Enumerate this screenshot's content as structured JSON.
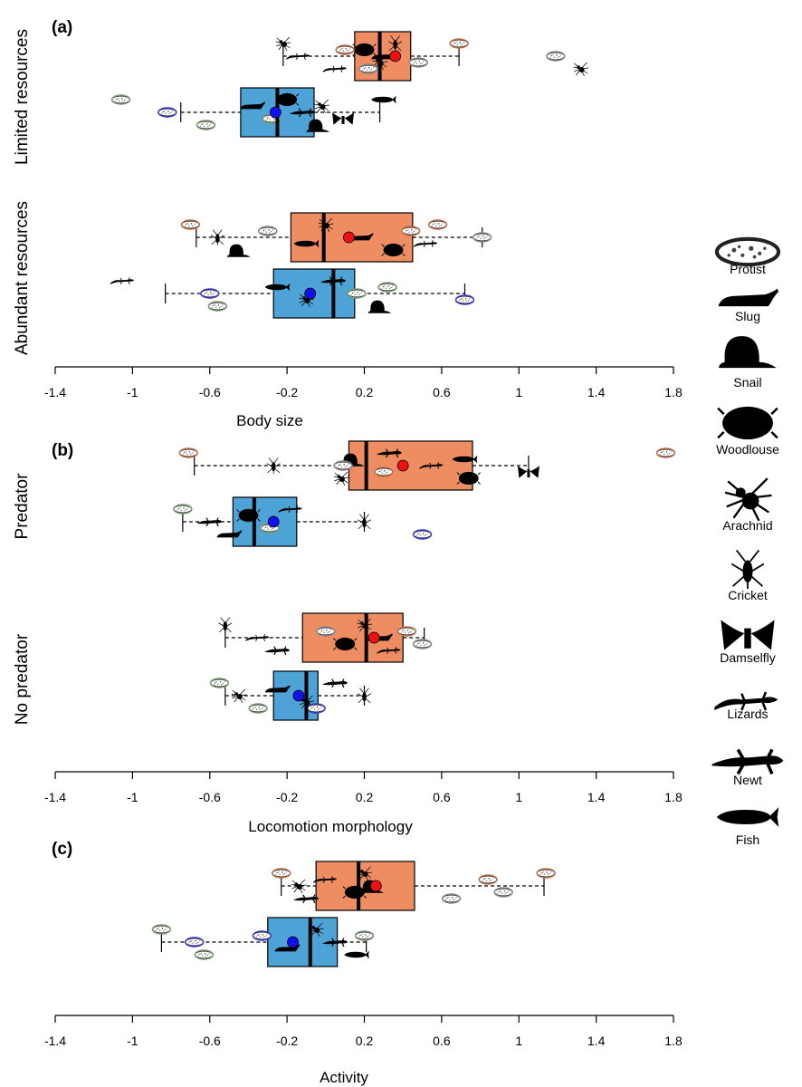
{
  "figure": {
    "colors": {
      "treatment": "#ee8c62",
      "control": "#4ea3d6",
      "treatment_mean": "#ee1111",
      "control_mean": "#1111ee",
      "box_stroke": "#000000",
      "median": "#000000"
    },
    "axis_ticks": [
      "-1.4",
      "-1",
      "-0.6",
      "-0.2",
      "0.2",
      "0.6",
      "1",
      "1.4",
      "1.8"
    ]
  },
  "legend": {
    "items": [
      {
        "label": "Protist",
        "icon": "protist-icon"
      },
      {
        "label": "Slug",
        "icon": "slug-icon"
      },
      {
        "label": "Snail",
        "icon": "snail-icon"
      },
      {
        "label": "Woodlouse",
        "icon": "woodlouse-icon"
      },
      {
        "label": "Arachnid",
        "icon": "arachnid-icon"
      },
      {
        "label": "Cricket",
        "icon": "cricket-icon"
      },
      {
        "label": "Damselfly",
        "icon": "damselfly-icon"
      },
      {
        "label": "Lizards",
        "icon": "lizard-icon"
      },
      {
        "label": "Newt",
        "icon": "newt-icon"
      },
      {
        "label": "Fish",
        "icon": "fish-icon"
      }
    ]
  },
  "chart_data": [
    {
      "type": "box",
      "panel": "(a)",
      "xlabel": "Body size",
      "xlim": [
        -1.4,
        1.8
      ],
      "groups": [
        {
          "label": "Limited resources",
          "boxes": [
            {
              "series": "treatment",
              "whisker_low": -0.22,
              "q1": 0.15,
              "median": 0.28,
              "q3": 0.44,
              "whisker_high": 0.69,
              "mean": 0.36,
              "points": [
                {
                  "x": -0.22,
                  "t": "arachnid"
                },
                {
                  "x": -0.14,
                  "t": "lizard"
                },
                {
                  "x": 0.05,
                  "t": "lizard"
                },
                {
                  "x": 0.2,
                  "t": "woodlouse"
                },
                {
                  "x": 0.28,
                  "t": "arachnid"
                },
                {
                  "x": 0.36,
                  "t": "cricket"
                },
                {
                  "x": 0.3,
                  "t": "slug"
                },
                {
                  "x": 0.22,
                  "t": "protist"
                },
                {
                  "x": 0.1,
                  "t": "protist"
                },
                {
                  "x": 0.48,
                  "t": "protist"
                },
                {
                  "x": 0.69,
                  "t": "protist"
                },
                {
                  "x": 1.19,
                  "t": "protist"
                },
                {
                  "x": 1.32,
                  "t": "arachnid"
                }
              ]
            },
            {
              "series": "control",
              "whisker_low": -0.75,
              "q1": -0.44,
              "median": -0.25,
              "q3": -0.06,
              "whisker_high": 0.28,
              "mean": -0.26,
              "points": [
                {
                  "x": -1.06,
                  "t": "protist"
                },
                {
                  "x": -0.82,
                  "t": "protist"
                },
                {
                  "x": -0.62,
                  "t": "protist"
                },
                {
                  "x": -0.38,
                  "t": "slug"
                },
                {
                  "x": -0.28,
                  "t": "protist"
                },
                {
                  "x": -0.2,
                  "t": "woodlouse"
                },
                {
                  "x": -0.12,
                  "t": "newt"
                },
                {
                  "x": -0.04,
                  "t": "snail"
                },
                {
                  "x": -0.02,
                  "t": "arachnid"
                },
                {
                  "x": 0.09,
                  "t": "damselfly"
                },
                {
                  "x": 0.3,
                  "t": "fish"
                }
              ]
            }
          ]
        },
        {
          "label": "Abundant resources",
          "boxes": [
            {
              "series": "treatment",
              "whisker_low": -0.67,
              "q1": -0.18,
              "median": -0.01,
              "q3": 0.45,
              "whisker_high": 0.81,
              "mean": 0.12,
              "points": [
                {
                  "x": -0.7,
                  "t": "protist"
                },
                {
                  "x": -0.56,
                  "t": "cricket"
                },
                {
                  "x": -0.45,
                  "t": "snail"
                },
                {
                  "x": -0.3,
                  "t": "protist"
                },
                {
                  "x": -0.1,
                  "t": "fish"
                },
                {
                  "x": 0.0,
                  "t": "arachnid"
                },
                {
                  "x": 0.18,
                  "t": "slug"
                },
                {
                  "x": 0.35,
                  "t": "woodlouse"
                },
                {
                  "x": 0.44,
                  "t": "protist"
                },
                {
                  "x": 0.52,
                  "t": "lizard"
                },
                {
                  "x": 0.58,
                  "t": "protist"
                },
                {
                  "x": 0.81,
                  "t": "protist"
                }
              ]
            },
            {
              "series": "control",
              "whisker_low": -0.83,
              "q1": -0.27,
              "median": 0.04,
              "q3": 0.15,
              "whisker_high": 0.72,
              "mean": -0.08,
              "points": [
                {
                  "x": -1.05,
                  "t": "lizard"
                },
                {
                  "x": -0.6,
                  "t": "protist"
                },
                {
                  "x": -0.56,
                  "t": "protist"
                },
                {
                  "x": -0.25,
                  "t": "fish"
                },
                {
                  "x": -0.1,
                  "t": "arachnid"
                },
                {
                  "x": 0.04,
                  "t": "newt"
                },
                {
                  "x": 0.16,
                  "t": "protist"
                },
                {
                  "x": 0.28,
                  "t": "snail"
                },
                {
                  "x": 0.32,
                  "t": "protist"
                },
                {
                  "x": 0.72,
                  "t": "protist"
                }
              ]
            }
          ]
        }
      ]
    },
    {
      "type": "box",
      "panel": "(b)",
      "xlabel": "Locomotion morphology",
      "xlim": [
        -1.4,
        1.8
      ],
      "groups": [
        {
          "label": "Predator",
          "boxes": [
            {
              "series": "treatment",
              "whisker_low": -0.68,
              "q1": 0.12,
              "median": 0.21,
              "q3": 0.76,
              "whisker_high": 1.05,
              "mean": 0.4,
              "points": [
                {
                  "x": -0.71,
                  "t": "protist"
                },
                {
                  "x": -0.27,
                  "t": "cricket"
                },
                {
                  "x": 0.08,
                  "t": "arachnid"
                },
                {
                  "x": 0.14,
                  "t": "snail"
                },
                {
                  "x": 0.3,
                  "t": "protist"
                },
                {
                  "x": 0.33,
                  "t": "newt"
                },
                {
                  "x": 0.55,
                  "t": "lizard"
                },
                {
                  "x": 0.74,
                  "t": "woodlouse"
                },
                {
                  "x": 0.72,
                  "t": "fish"
                },
                {
                  "x": 1.05,
                  "t": "damselfly"
                },
                {
                  "x": 1.76,
                  "t": "protist"
                },
                {
                  "x": 0.09,
                  "t": "protist"
                }
              ]
            },
            {
              "series": "control",
              "whisker_low": -0.74,
              "q1": -0.48,
              "median": -0.37,
              "q3": -0.15,
              "whisker_high": 0.2,
              "mean": -0.27,
              "points": [
                {
                  "x": -0.74,
                  "t": "protist"
                },
                {
                  "x": -0.6,
                  "t": "newt"
                },
                {
                  "x": -0.5,
                  "t": "slug"
                },
                {
                  "x": -0.4,
                  "t": "woodlouse"
                },
                {
                  "x": -0.29,
                  "t": "protist"
                },
                {
                  "x": -0.18,
                  "t": "lizard"
                },
                {
                  "x": 0.2,
                  "t": "cricket"
                },
                {
                  "x": 0.5,
                  "t": "protist"
                }
              ]
            }
          ]
        },
        {
          "label": "No predator",
          "boxes": [
            {
              "series": "treatment",
              "whisker_low": -0.52,
              "q1": -0.12,
              "median": 0.21,
              "q3": 0.4,
              "whisker_high": 0.51,
              "mean": 0.25,
              "points": [
                {
                  "x": -0.52,
                  "t": "cricket"
                },
                {
                  "x": -0.35,
                  "t": "lizard"
                },
                {
                  "x": -0.25,
                  "t": "newt"
                },
                {
                  "x": 0.0,
                  "t": "protist"
                },
                {
                  "x": 0.1,
                  "t": "woodlouse"
                },
                {
                  "x": 0.2,
                  "t": "arachnid"
                },
                {
                  "x": 0.28,
                  "t": "slug"
                },
                {
                  "x": 0.33,
                  "t": "lizard"
                },
                {
                  "x": 0.42,
                  "t": "protist"
                },
                {
                  "x": 0.5,
                  "t": "protist"
                }
              ]
            },
            {
              "series": "control",
              "whisker_low": -0.52,
              "q1": -0.27,
              "median": -0.1,
              "q3": -0.04,
              "whisker_high": 0.2,
              "mean": -0.14,
              "points": [
                {
                  "x": -0.55,
                  "t": "protist"
                },
                {
                  "x": -0.45,
                  "t": "arachnid"
                },
                {
                  "x": -0.35,
                  "t": "protist"
                },
                {
                  "x": -0.25,
                  "t": "slug"
                },
                {
                  "x": -0.1,
                  "t": "arachnid"
                },
                {
                  "x": 0.05,
                  "t": "newt"
                },
                {
                  "x": 0.2,
                  "t": "cricket"
                },
                {
                  "x": -0.05,
                  "t": "protist"
                }
              ]
            }
          ]
        }
      ]
    },
    {
      "type": "box",
      "panel": "(c)",
      "xlabel": "Activity",
      "xlim": [
        -1.4,
        1.8
      ],
      "groups": [
        {
          "label": "",
          "boxes": [
            {
              "series": "treatment",
              "whisker_low": -0.23,
              "q1": -0.05,
              "median": 0.17,
              "q3": 0.46,
              "whisker_high": 1.13,
              "mean": 0.26,
              "points": [
                {
                  "x": -0.23,
                  "t": "protist"
                },
                {
                  "x": -0.14,
                  "t": "arachnid"
                },
                {
                  "x": -0.1,
                  "t": "newt"
                },
                {
                  "x": 0.0,
                  "t": "lizard"
                },
                {
                  "x": 0.15,
                  "t": "woodlouse"
                },
                {
                  "x": 0.2,
                  "t": "arachnid"
                },
                {
                  "x": 0.24,
                  "t": "snail"
                },
                {
                  "x": 0.65,
                  "t": "protist"
                },
                {
                  "x": 0.84,
                  "t": "protist"
                },
                {
                  "x": 0.92,
                  "t": "protist"
                },
                {
                  "x": 1.14,
                  "t": "protist"
                }
              ]
            },
            {
              "series": "control",
              "whisker_low": -0.85,
              "q1": -0.3,
              "median": -0.08,
              "q3": 0.06,
              "whisker_high": 0.21,
              "mean": -0.17,
              "points": [
                {
                  "x": -0.85,
                  "t": "protist"
                },
                {
                  "x": -0.68,
                  "t": "protist"
                },
                {
                  "x": -0.63,
                  "t": "protist"
                },
                {
                  "x": -0.33,
                  "t": "protist"
                },
                {
                  "x": -0.2,
                  "t": "slug"
                },
                {
                  "x": -0.05,
                  "t": "arachnid"
                },
                {
                  "x": 0.05,
                  "t": "newt"
                },
                {
                  "x": 0.16,
                  "t": "fish"
                },
                {
                  "x": 0.2,
                  "t": "protist"
                }
              ]
            }
          ]
        }
      ]
    }
  ]
}
